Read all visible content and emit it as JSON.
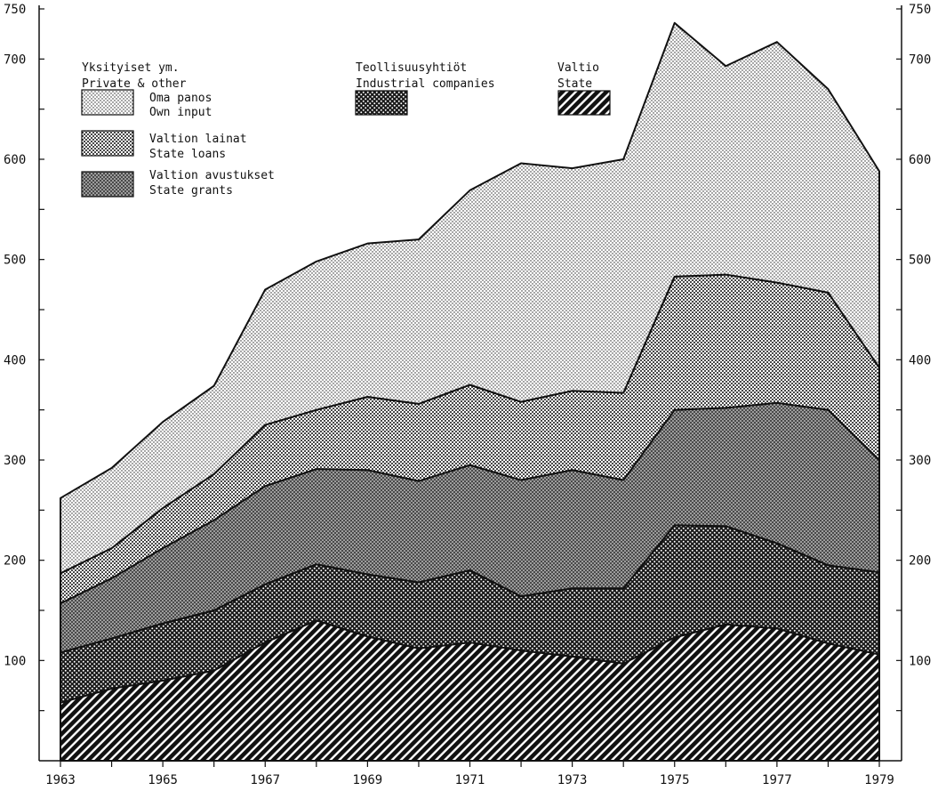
{
  "chart_data": {
    "type": "area",
    "stacked": true,
    "x": [
      1963,
      1964,
      1965,
      1966,
      1967,
      1968,
      1969,
      1970,
      1971,
      1972,
      1973,
      1974,
      1975,
      1976,
      1977,
      1978,
      1979
    ],
    "x_tick_labels": [
      "1963",
      "1965",
      "1967",
      "1969",
      "1971",
      "1973",
      "1975",
      "1977",
      "1979"
    ],
    "y_tick_labels": [
      "100",
      "200",
      "300",
      "400",
      "500",
      "600",
      "700",
      "750"
    ],
    "ylim": [
      0,
      750
    ],
    "series": [
      {
        "name": "Valtio / State",
        "pattern": "diagonal-hatch",
        "values": [
          58,
          72,
          80,
          90,
          118,
          140,
          124,
          112,
          118,
          110,
          104,
          97,
          123,
          136,
          132,
          117,
          106
        ]
      },
      {
        "name": "Teollisuusyhtiöt / Industrial companies",
        "pattern": "dense-dots",
        "values": [
          50,
          50,
          57,
          60,
          58,
          56,
          62,
          66,
          72,
          54,
          68,
          75,
          112,
          98,
          85,
          78,
          82
        ]
      },
      {
        "name": "Valtion avustukset / State grants",
        "pattern": "dark-stipple",
        "values": [
          49,
          60,
          75,
          90,
          98,
          95,
          104,
          101,
          105,
          116,
          118,
          108,
          115,
          118,
          140,
          155,
          112
        ]
      },
      {
        "name": "Valtion lainat / State loans",
        "pattern": "medium-dots",
        "values": [
          30,
          30,
          40,
          46,
          61,
          59,
          73,
          77,
          80,
          78,
          79,
          87,
          133,
          133,
          120,
          117,
          92
        ]
      },
      {
        "name": "Oma panos / Own input",
        "pattern": "light-dots",
        "values": [
          75,
          80,
          86,
          88,
          135,
          148,
          153,
          164,
          194,
          238,
          222,
          233,
          253,
          208,
          240,
          203,
          196
        ]
      }
    ],
    "totals": [
      262,
      292,
      338,
      374,
      470,
      498,
      516,
      520,
      569,
      596,
      591,
      600,
      736,
      693,
      717,
      670,
      588
    ],
    "legend": {
      "groups": [
        {
          "title_fi": "Yksityiset ym.",
          "title_en": "Private & other",
          "items": [
            {
              "fi": "Oma panos",
              "en": "Own input",
              "pattern": "light-dots"
            },
            {
              "fi": "Valtion lainat",
              "en": "State loans",
              "pattern": "medium-dots"
            },
            {
              "fi": "Valtion avustukset",
              "en": "State grants",
              "pattern": "dark-stipple"
            }
          ]
        },
        {
          "title_fi": "Teollisuusyhtiöt",
          "title_en": "Industrial companies",
          "items": [
            {
              "fi": "",
              "en": "",
              "pattern": "dense-dots"
            }
          ]
        },
        {
          "title_fi": "Valtio",
          "title_en": "State",
          "items": [
            {
              "fi": "",
              "en": "",
              "pattern": "diagonal-hatch"
            }
          ]
        }
      ]
    },
    "grid": false,
    "legend_position": "top-left"
  },
  "colors": {
    "ink": "#111111",
    "background": "#ffffff"
  }
}
